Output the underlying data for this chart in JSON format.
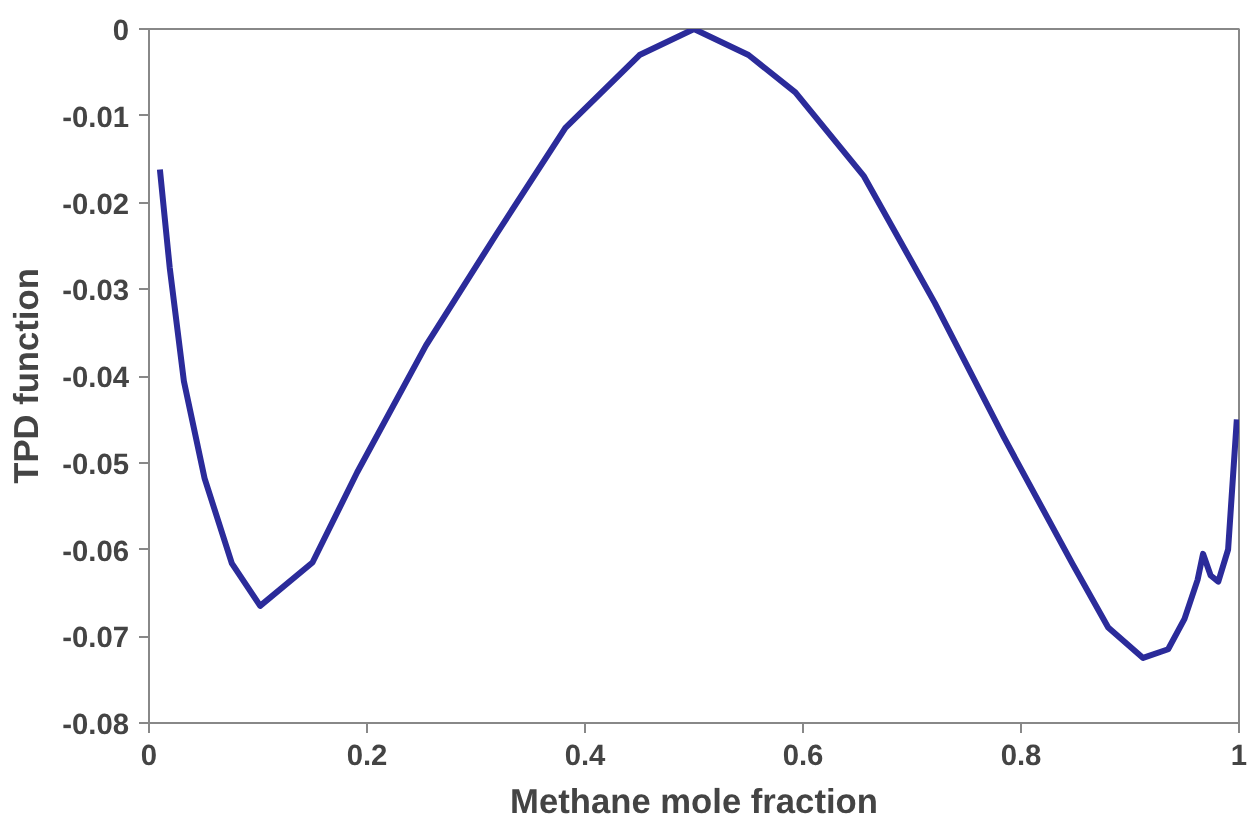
{
  "chart_data": {
    "type": "line",
    "xlabel": "Methane mole fraction",
    "ylabel": "TPD function",
    "xlim": [
      0,
      1
    ],
    "ylim": [
      -0.08,
      0
    ],
    "xticks": [
      0,
      0.2,
      0.4,
      0.6,
      0.8,
      1
    ],
    "yticks": [
      0,
      -0.01,
      -0.02,
      -0.03,
      -0.04,
      -0.05,
      -0.06,
      -0.07,
      -0.08
    ],
    "grid": false,
    "marker": "none",
    "line_style": "solid",
    "series": [
      {
        "color": "#2b2b9a",
        "x": [
          0.01,
          0.019,
          0.032,
          0.051,
          0.076,
          0.102,
          0.15,
          0.191,
          0.254,
          0.319,
          0.382,
          0.45,
          0.5,
          0.55,
          0.593,
          0.656,
          0.721,
          0.784,
          0.847,
          0.88,
          0.912,
          0.935,
          0.95,
          0.962,
          0.967,
          0.974,
          0.981,
          0.99,
          0.998
        ],
        "values": [
          -0.0162,
          -0.0275,
          -0.0406,
          -0.0518,
          -0.0616,
          -0.0665,
          -0.0615,
          -0.0511,
          -0.0365,
          -0.0236,
          -0.0114,
          -0.003,
          0,
          -0.003,
          -0.0073,
          -0.017,
          -0.0316,
          -0.047,
          -0.0616,
          -0.069,
          -0.0725,
          -0.0715,
          -0.068,
          -0.0635,
          -0.0605,
          -0.063,
          -0.0637,
          -0.06,
          -0.045
        ]
      }
    ]
  }
}
